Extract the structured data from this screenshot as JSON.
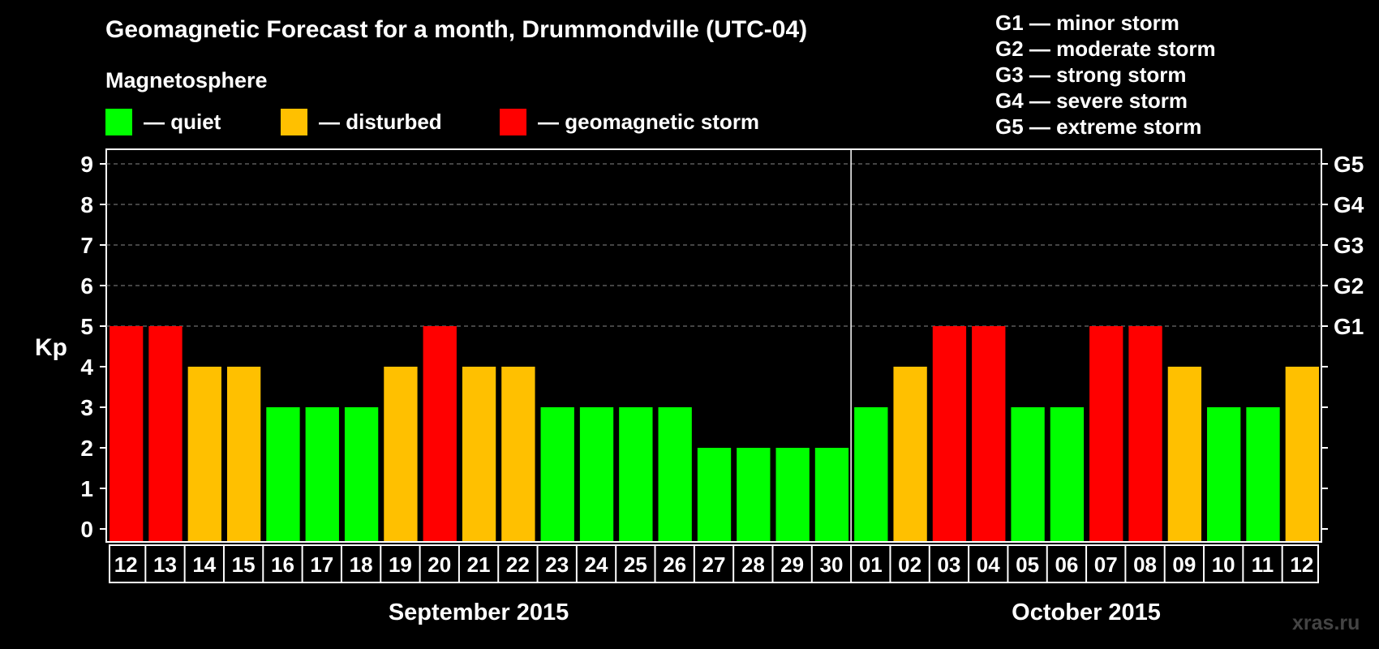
{
  "header": {
    "title": "Geomagnetic Forecast for a month, Drummondville (UTC-04)",
    "magnetosphere_label": "Magnetosphere"
  },
  "legend": [
    {
      "label": "— quiet",
      "color": "#00ff00"
    },
    {
      "label": "— disturbed",
      "color": "#ffc000"
    },
    {
      "label": "— geomagnetic storm",
      "color": "#ff0000"
    }
  ],
  "storm_scale": [
    "G1 — minor storm",
    "G2 — moderate storm",
    "G3 — strong storm",
    "G4 — severe storm",
    "G5 — extreme storm"
  ],
  "watermark": "xras.ru",
  "chart_data": {
    "type": "bar",
    "title": "Geomagnetic Forecast for a month, Drummondville (UTC-04)",
    "ylabel": "Kp",
    "ylim": [
      0,
      9
    ],
    "yticks": [
      "0",
      "1",
      "2",
      "3",
      "4",
      "5",
      "6",
      "7",
      "8",
      "9"
    ],
    "right_axis_labels": {
      "5": "G1",
      "6": "G2",
      "7": "G3",
      "8": "G4",
      "9": "G5"
    },
    "grid": "dashed at Kp 5–9",
    "months": [
      {
        "label": "September 2015",
        "count": 19
      },
      {
        "label": "October 2015",
        "count": 12
      }
    ],
    "categories": [
      "12",
      "13",
      "14",
      "15",
      "16",
      "17",
      "18",
      "19",
      "20",
      "21",
      "22",
      "23",
      "24",
      "25",
      "26",
      "27",
      "28",
      "29",
      "30",
      "01",
      "02",
      "03",
      "04",
      "05",
      "06",
      "07",
      "08",
      "09",
      "10",
      "11",
      "12"
    ],
    "values": [
      5,
      5,
      4,
      4,
      3,
      3,
      3,
      4,
      5,
      4,
      4,
      3,
      3,
      3,
      3,
      2,
      2,
      2,
      2,
      3,
      4,
      5,
      5,
      3,
      3,
      5,
      5,
      4,
      3,
      3,
      4
    ],
    "color_scale": {
      "quiet": "#00ff00",
      "disturbed": "#ffc000",
      "storm": "#ff0000"
    }
  }
}
